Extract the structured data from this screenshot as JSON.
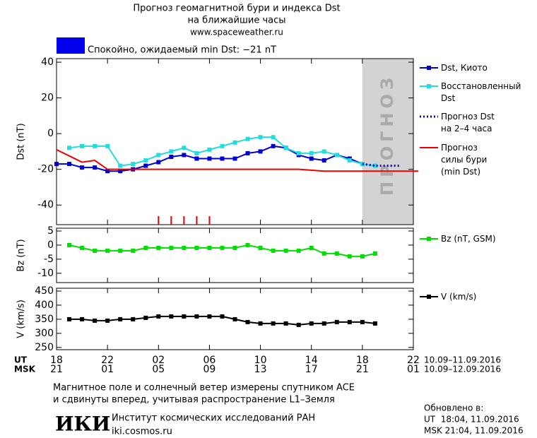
{
  "header": {
    "title_line1": "Прогноз геомагнитной бури и индекса Dst",
    "title_line2": "на ближайшие часы",
    "url": "www.spaceweather.ru",
    "status": "Спокойно, ожидаемый min Dst: −21 nT",
    "status_color": "#0000ee"
  },
  "x_axis": {
    "xlim": [
      0,
      28
    ],
    "xticks": [
      {
        "value": 0,
        "label": "18"
      },
      {
        "value": 4,
        "label": "22"
      },
      {
        "value": 8,
        "label": "02"
      },
      {
        "value": 12,
        "label": "06"
      },
      {
        "value": 16,
        "label": "10"
      },
      {
        "value": 20,
        "label": "14"
      },
      {
        "value": 24,
        "label": "18"
      },
      {
        "value": 28,
        "label": "22"
      }
    ],
    "msk_ticks": [
      {
        "value": 0,
        "label": "21"
      },
      {
        "value": 4,
        "label": "01"
      },
      {
        "value": 8,
        "label": "05"
      },
      {
        "value": 12,
        "label": "09"
      },
      {
        "value": 16,
        "label": "13"
      },
      {
        "value": 20,
        "label": "17"
      },
      {
        "value": 24,
        "label": "21"
      },
      {
        "value": 28,
        "label": "01"
      }
    ],
    "row_labels": [
      "UT",
      "MSK"
    ],
    "date_ranges": [
      "10.09–11.09.2016",
      "10.09–12.09.2016"
    ]
  },
  "chart_data": [
    {
      "type": "line",
      "ylabel": "Dst (nT)",
      "ylim": [
        -51,
        42
      ],
      "yticks": [
        -40,
        -20,
        0,
        20,
        40
      ],
      "forecast_region": {
        "xlim": [
          24,
          28
        ],
        "label": "ПРОГНОЗ",
        "color": "#d3d3d3"
      },
      "event_marks_x": [
        8,
        9,
        10,
        11,
        12
      ],
      "event_color": "#ee0000",
      "series": [
        {
          "name": "Dst, Киото",
          "color": "#0000cc",
          "marker": "square",
          "x": [
            0,
            1,
            2,
            3,
            4,
            5,
            6,
            7,
            8,
            9,
            10,
            11,
            12,
            13,
            14,
            15,
            16,
            17,
            18,
            19,
            20,
            21,
            22,
            23,
            24
          ],
          "values": [
            -17,
            -17,
            -19,
            -19,
            -21,
            -21,
            -20,
            -18,
            -16,
            -13,
            -12,
            -14,
            -14,
            -14,
            -14,
            -11,
            -10,
            -7,
            -8,
            -12,
            -14,
            -15,
            -12,
            -14,
            -17
          ]
        },
        {
          "name": "Восстановленный\nDst",
          "color": "#22dddd",
          "marker": "square",
          "x": [
            1,
            2,
            3,
            4,
            5,
            6,
            7,
            8,
            9,
            10,
            11,
            12,
            13,
            14,
            15,
            16,
            17,
            18,
            19,
            20,
            21,
            22,
            23,
            24,
            25
          ],
          "values": [
            -8,
            -7,
            -7,
            -7,
            -18,
            -17,
            -15,
            -12,
            -10,
            -8,
            -11,
            -9,
            -7,
            -5,
            -3,
            -2,
            -2,
            -8,
            -11,
            -11,
            -10,
            -12,
            -15,
            -17,
            -18
          ]
        },
        {
          "name": "Прогноз Dst\nна 2–4 часа",
          "color": "#0000cc",
          "dash": "dotted",
          "x": [
            24,
            25,
            26,
            27
          ],
          "values": [
            -17,
            -18,
            -18,
            -18
          ]
        },
        {
          "name": "Прогноз\nсилы бури\n(min Dst)",
          "color": "#ee0000",
          "x": [
            0,
            2,
            3,
            4,
            19,
            21,
            28.4
          ],
          "values": [
            -9,
            -16,
            -15,
            -20,
            -20,
            -21,
            -21
          ]
        }
      ]
    },
    {
      "type": "line",
      "ylabel": "Bz (nT)",
      "ylim": [
        -13.3,
        6
      ],
      "yticks": [
        -10,
        -5,
        0,
        5
      ],
      "series": [
        {
          "name": "Bz (nT, GSM)",
          "color": "#00dd00",
          "marker": "square",
          "x": [
            1,
            2,
            3,
            4,
            5,
            6,
            7,
            8,
            9,
            10,
            11,
            12,
            13,
            14,
            15,
            16,
            17,
            18,
            19,
            20,
            21,
            22,
            23,
            24,
            25
          ],
          "values": [
            0,
            -1,
            -2,
            -2,
            -2,
            -2,
            -1,
            -1,
            -1,
            -1,
            -1,
            -1,
            -1,
            -1,
            0,
            -1,
            -2,
            -2,
            -2,
            -1,
            -3,
            -3,
            -4,
            -4,
            -3
          ]
        }
      ]
    },
    {
      "type": "line",
      "ylabel": "V (km/s)",
      "ylim": [
        242,
        460
      ],
      "yticks": [
        250,
        300,
        350,
        400,
        450
      ],
      "series": [
        {
          "name": "V (km/s)",
          "color": "#000000",
          "marker": "square",
          "x": [
            1,
            2,
            3,
            4,
            5,
            6,
            7,
            8,
            9,
            10,
            11,
            12,
            13,
            14,
            15,
            16,
            17,
            18,
            19,
            20,
            21,
            22,
            23,
            24,
            25
          ],
          "values": [
            350,
            350,
            345,
            345,
            350,
            350,
            355,
            360,
            360,
            360,
            360,
            360,
            360,
            350,
            340,
            335,
            335,
            335,
            330,
            335,
            335,
            340,
            340,
            340,
            335
          ]
        }
      ]
    }
  ],
  "footer": {
    "note_line1": "Магнитное поле и солнечный ветер измерены спутником ACE",
    "note_line2": "и сдвинуты вперед, учитывая распространение L1–Земля",
    "logo": "ИКИ",
    "institute": "Институт космических исследований РАН",
    "site": "iki.cosmos.ru",
    "updated_label": "Обновлено в:",
    "updated_ut": "UT  18:04, 11.09.2016",
    "updated_msk": "MSK 21:04, 11.09.2016"
  }
}
